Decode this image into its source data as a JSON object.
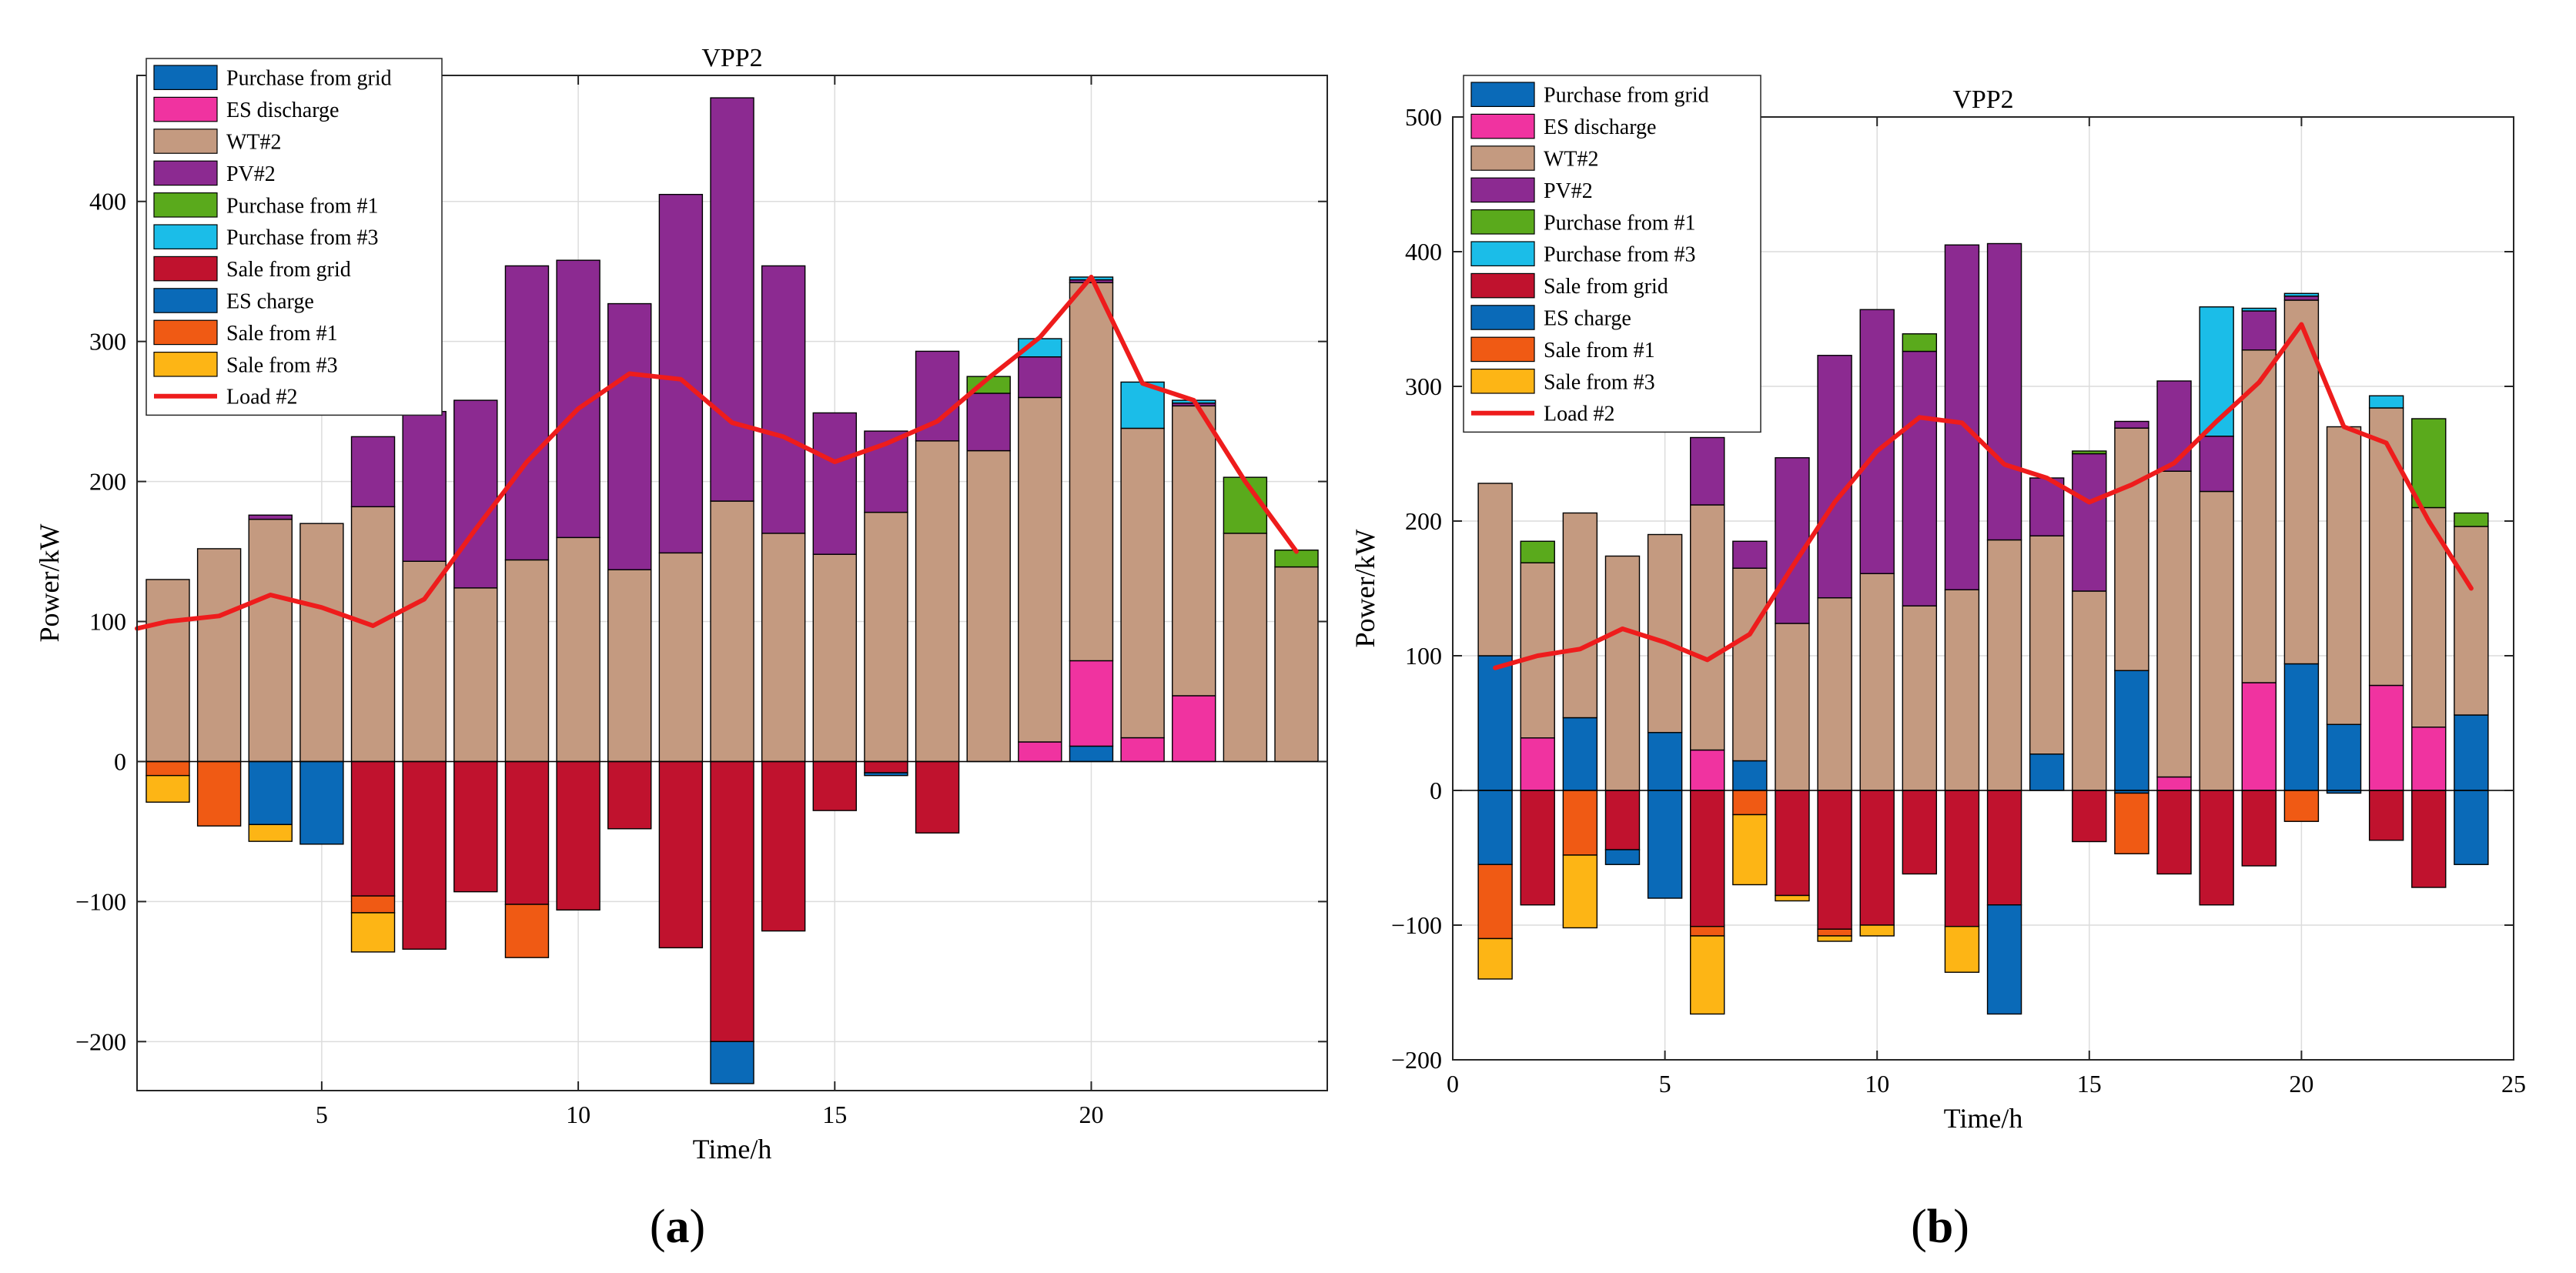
{
  "chart_data": [
    {
      "panel_label": "(a)",
      "panel_letter": "a",
      "type": "bar",
      "stacked": true,
      "title": "VPP2",
      "xlabel": "Time/h",
      "ylabel": "Power/kW",
      "xlim": [
        1.4,
        24.6
      ],
      "ylim": [
        -235,
        490
      ],
      "xticks": [
        5,
        10,
        15,
        20
      ],
      "yticks": [
        -200,
        -100,
        0,
        100,
        200,
        300,
        400
      ],
      "grid": true,
      "legend_position": "top-left",
      "x": [
        2,
        3,
        4,
        5,
        6,
        7,
        8,
        9,
        10,
        11,
        12,
        13,
        14,
        15,
        16,
        17,
        18,
        19,
        20,
        21,
        22,
        23,
        24
      ],
      "series": [
        {
          "name": "Purchase from grid",
          "color": "#0a6ab8",
          "values": [
            0,
            0,
            0,
            0,
            0,
            0,
            0,
            0,
            0,
            0,
            0,
            0,
            0,
            0,
            0,
            0,
            0,
            0,
            11,
            0,
            0,
            0,
            0
          ]
        },
        {
          "name": "ES discharge",
          "color": "#f033a0",
          "values": [
            0,
            0,
            0,
            0,
            0,
            0,
            0,
            0,
            0,
            0,
            0,
            0,
            0,
            0,
            0,
            0,
            0,
            14,
            61,
            17,
            47,
            0,
            0
          ]
        },
        {
          "name": "WT#2",
          "color": "#c49a80",
          "values": [
            130,
            152,
            173,
            170,
            182,
            143,
            124,
            144,
            160,
            137,
            149,
            186,
            163,
            148,
            178,
            229,
            222,
            246,
            270,
            221,
            207,
            163,
            139
          ]
        },
        {
          "name": "PV#2",
          "color": "#8c2a91",
          "values": [
            0,
            0,
            3,
            0,
            50,
            107,
            134,
            210,
            198,
            190,
            256,
            288,
            191,
            101,
            58,
            64,
            41,
            29,
            2,
            0,
            2,
            0,
            0
          ]
        },
        {
          "name": "Purchase from #1",
          "color": "#5aaa1c",
          "values": [
            0,
            0,
            0,
            0,
            0,
            0,
            0,
            0,
            0,
            0,
            0,
            0,
            0,
            0,
            0,
            0,
            12,
            0,
            0,
            0,
            0,
            40,
            12
          ]
        },
        {
          "name": "Purchase from #3",
          "color": "#1bbde8",
          "values": [
            0,
            0,
            0,
            0,
            0,
            0,
            0,
            0,
            0,
            0,
            0,
            0,
            0,
            0,
            0,
            0,
            0,
            13,
            2,
            33,
            2,
            0,
            0
          ]
        },
        {
          "name": "Sale from grid",
          "color": "#c0122e",
          "values": [
            0,
            0,
            0,
            0,
            -96,
            -134,
            -93,
            -102,
            -106,
            -48,
            -133,
            -200,
            -121,
            -35,
            -8,
            -51,
            0,
            0,
            0,
            0,
            0,
            0,
            0
          ]
        },
        {
          "name": "ES charge",
          "color": "#0a6ab8",
          "values": [
            0,
            0,
            -45,
            -59,
            0,
            0,
            0,
            0,
            0,
            0,
            0,
            -30,
            0,
            0,
            -2,
            0,
            0,
            0,
            0,
            0,
            0,
            0,
            0
          ]
        },
        {
          "name": "Sale from #1",
          "color": "#f05a14",
          "values": [
            -10,
            -46,
            0,
            0,
            -12,
            0,
            0,
            -38,
            0,
            0,
            0,
            0,
            0,
            0,
            0,
            0,
            0,
            0,
            0,
            0,
            0,
            0,
            0
          ]
        },
        {
          "name": "Sale from #3",
          "color": "#fdb515",
          "values": [
            -19,
            0,
            -12,
            0,
            -28,
            0,
            0,
            0,
            0,
            0,
            0,
            0,
            0,
            0,
            0,
            0,
            0,
            0,
            0,
            0,
            0,
            0,
            0
          ]
        }
      ],
      "line": {
        "name": "Load #2",
        "color": "#ee1c1c",
        "x": [
          1.4,
          2,
          3,
          4,
          5,
          6,
          7,
          8,
          9,
          10,
          11,
          12,
          13,
          14,
          15,
          16,
          17,
          18,
          19,
          20,
          21,
          22,
          23,
          24
        ],
        "values": [
          95,
          100,
          104,
          119,
          110,
          97,
          116,
          166,
          214,
          252,
          277,
          273,
          242,
          232,
          214,
          227,
          243,
          274,
          303,
          346,
          270,
          258,
          200,
          150
        ]
      }
    },
    {
      "panel_label": "(b)",
      "panel_letter": "b",
      "type": "bar",
      "stacked": true,
      "title": "VPP2",
      "xlabel": "Time/h",
      "ylabel": "Power/kW",
      "xlim": [
        0,
        25
      ],
      "ylim": [
        -200,
        500
      ],
      "xticks": [
        0,
        5,
        10,
        15,
        20,
        25
      ],
      "yticks": [
        -200,
        -100,
        0,
        100,
        200,
        300,
        400,
        500
      ],
      "grid": true,
      "legend_position": "top-left",
      "x": [
        1,
        2,
        3,
        4,
        5,
        6,
        7,
        8,
        9,
        10,
        11,
        12,
        13,
        14,
        15,
        16,
        17,
        18,
        19,
        20,
        21,
        22,
        23,
        24
      ],
      "series": [
        {
          "name": "Purchase from grid",
          "color": "#0a6ab8",
          "values": [
            100,
            0,
            54,
            0,
            43,
            0,
            22,
            0,
            0,
            0,
            0,
            0,
            0,
            27,
            0,
            89,
            0,
            0,
            0,
            94,
            49,
            0,
            0,
            56
          ]
        },
        {
          "name": "ES discharge",
          "color": "#f033a0",
          "values": [
            0,
            39,
            0,
            0,
            0,
            30,
            0,
            0,
            0,
            0,
            0,
            0,
            0,
            0,
            0,
            0,
            10,
            0,
            80,
            0,
            0,
            78,
            47,
            0
          ]
        },
        {
          "name": "WT#2",
          "color": "#c49a80",
          "values": [
            128,
            130,
            152,
            174,
            147,
            182,
            143,
            124,
            143,
            161,
            137,
            149,
            186,
            162,
            148,
            180,
            227,
            222,
            247,
            270,
            221,
            206,
            163,
            140
          ]
        },
        {
          "name": "PV#2",
          "color": "#8c2a91",
          "values": [
            0,
            0,
            0,
            0,
            0,
            50,
            20,
            123,
            180,
            196,
            189,
            256,
            220,
            43,
            102,
            5,
            67,
            41,
            29,
            3,
            0,
            0,
            0,
            0
          ]
        },
        {
          "name": "Purchase from #1",
          "color": "#5aaa1c",
          "values": [
            0,
            16,
            0,
            0,
            0,
            0,
            0,
            0,
            0,
            0,
            13,
            0,
            0,
            0,
            2,
            0,
            0,
            0,
            0,
            0,
            0,
            0,
            66,
            10
          ]
        },
        {
          "name": "Purchase from #3",
          "color": "#1bbde8",
          "values": [
            0,
            0,
            0,
            0,
            0,
            0,
            0,
            0,
            0,
            0,
            0,
            0,
            0,
            0,
            0,
            0,
            0,
            96,
            2,
            2,
            0,
            9,
            0,
            0
          ]
        },
        {
          "name": "Sale from grid",
          "color": "#c0122e",
          "values": [
            0,
            -85,
            0,
            -44,
            0,
            -101,
            0,
            -78,
            -103,
            -100,
            -62,
            -101,
            -85,
            0,
            -38,
            0,
            -62,
            -85,
            -56,
            0,
            0,
            -37,
            -72,
            0
          ]
        },
        {
          "name": "ES charge",
          "color": "#0a6ab8",
          "values": [
            -55,
            0,
            0,
            -11,
            -80,
            0,
            0,
            0,
            0,
            0,
            0,
            0,
            -81,
            0,
            0,
            -2,
            0,
            0,
            0,
            0,
            -2,
            0,
            0,
            -55
          ]
        },
        {
          "name": "Sale from #1",
          "color": "#f05a14",
          "values": [
            -55,
            0,
            -48,
            0,
            0,
            -7,
            -18,
            0,
            -5,
            0,
            0,
            0,
            0,
            0,
            0,
            -45,
            0,
            0,
            0,
            -23,
            0,
            0,
            0,
            0
          ]
        },
        {
          "name": "Sale from #3",
          "color": "#fdb515",
          "values": [
            -30,
            0,
            -54,
            0,
            0,
            -58,
            -52,
            -4,
            -4,
            -8,
            0,
            -34,
            0,
            0,
            0,
            0,
            0,
            0,
            0,
            0,
            0,
            0,
            0,
            0
          ]
        }
      ],
      "line": {
        "name": "Load #2",
        "color": "#ee1c1c",
        "x": [
          1,
          2,
          3,
          4,
          5,
          6,
          7,
          8,
          9,
          10,
          11,
          12,
          13,
          14,
          15,
          16,
          17,
          18,
          19,
          20,
          21,
          22,
          23,
          24
        ],
        "values": [
          91,
          100,
          105,
          120,
          110,
          97,
          116,
          166,
          214,
          252,
          277,
          273,
          242,
          232,
          214,
          227,
          243,
          274,
          303,
          346,
          270,
          258,
          200,
          150
        ]
      }
    }
  ]
}
